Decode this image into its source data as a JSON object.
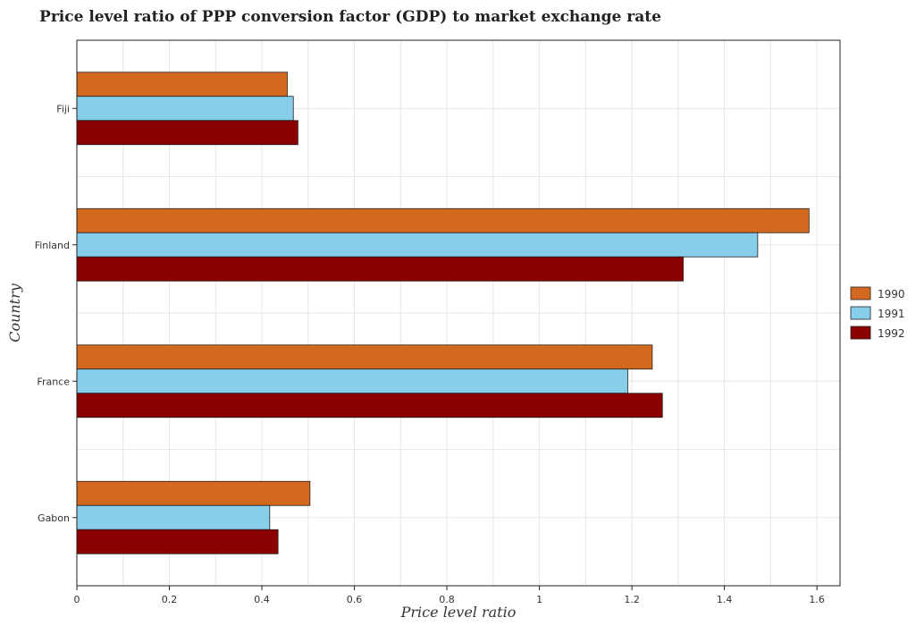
{
  "chart_data": {
    "type": "bar",
    "orientation": "horizontal",
    "title": "Price level ratio of PPP conversion factor (GDP) to market exchange rate",
    "xlabel": "Price level ratio",
    "ylabel": "Country",
    "categories": [
      "Fiji",
      "Finland",
      "France",
      "Gabon"
    ],
    "series": [
      {
        "name": "1990",
        "color": "#d2691e",
        "values": [
          0.455,
          1.583,
          1.244,
          0.504
        ]
      },
      {
        "name": "1991",
        "color": "#87ceeb",
        "values": [
          0.468,
          1.472,
          1.191,
          0.417
        ]
      },
      {
        "name": "1992",
        "color": "#8b0000",
        "values": [
          0.478,
          1.311,
          1.266,
          0.435
        ]
      }
    ],
    "xlim": [
      0,
      1.65
    ],
    "xticks": [
      0,
      0.2,
      0.4,
      0.6,
      0.8,
      1.0,
      1.2,
      1.4,
      1.6
    ],
    "xtick_labels": [
      "0",
      "0.2",
      "0.4",
      "0.6",
      "0.8",
      "1",
      "1.2",
      "1.4",
      "1.6"
    ],
    "grid": true,
    "legend_position": "right"
  }
}
